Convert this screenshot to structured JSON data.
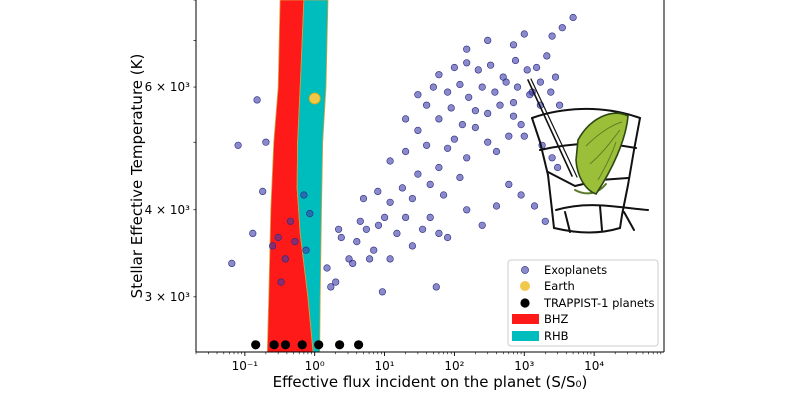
{
  "chart_data": {
    "type": "scatter",
    "xlabel": "Effective flux incident on the planet (S/S₀)",
    "ylabel": "Stellar Effective Temperature (K)",
    "x_scale": "log",
    "y_scale": "log",
    "xlim": [
      0.02,
      100000
    ],
    "ylim": [
      2500,
      8000
    ],
    "x_ticks": [
      {
        "value": 0.1,
        "label": "10⁻¹"
      },
      {
        "value": 1,
        "label": "10⁰"
      },
      {
        "value": 10,
        "label": "10¹"
      },
      {
        "value": 100,
        "label": "10²"
      },
      {
        "value": 1000,
        "label": "10³"
      },
      {
        "value": 10000,
        "label": "10⁴"
      }
    ],
    "y_ticks": [
      {
        "value": 3000,
        "label": "3 × 10³"
      },
      {
        "value": 4000,
        "label": "4 × 10³"
      },
      {
        "value": 6000,
        "label": "6 × 10³"
      }
    ],
    "legend": {
      "position": "lower-right",
      "entries": [
        {
          "label": "Exoplanets",
          "marker": "circle",
          "color": "#3a3aa8"
        },
        {
          "label": "Earth",
          "marker": "circle",
          "color": "#f2c84b"
        },
        {
          "label": "TRAPPIST-1 planets",
          "marker": "circle",
          "color": "#000000"
        },
        {
          "label": "BHZ",
          "marker": "patch",
          "color": "#ff1a1a"
        },
        {
          "label": "RHB",
          "marker": "patch",
          "color": "#00bdbd"
        }
      ]
    },
    "regions": [
      {
        "name": "BHZ",
        "color": "#ff1a1a",
        "inner_edge": [
          [
            0.32,
            8000
          ],
          [
            0.3,
            6000
          ],
          [
            0.26,
            5000
          ],
          [
            0.235,
            4000
          ],
          [
            0.22,
            3000
          ],
          [
            0.21,
            2500
          ]
        ],
        "outer_edge": [
          [
            0.7,
            8000
          ],
          [
            0.62,
            6000
          ],
          [
            0.57,
            5000
          ],
          [
            0.56,
            4300
          ],
          [
            0.62,
            3700
          ],
          [
            0.8,
            3000
          ],
          [
            0.95,
            2500
          ]
        ]
      },
      {
        "name": "RHB",
        "color": "#00bdbd",
        "inner_edge": [
          [
            0.7,
            8000
          ],
          [
            0.62,
            6000
          ],
          [
            0.57,
            5000
          ],
          [
            0.56,
            4300
          ],
          [
            0.62,
            3700
          ],
          [
            0.8,
            3000
          ],
          [
            0.95,
            2500
          ]
        ],
        "outer_edge": [
          [
            1.55,
            8000
          ],
          [
            1.45,
            6000
          ],
          [
            1.3,
            5000
          ],
          [
            1.25,
            4000
          ],
          [
            1.2,
            3000
          ],
          [
            1.18,
            2500
          ]
        ]
      }
    ],
    "series": [
      {
        "name": "Earth",
        "color": "#f2c84b",
        "points": [
          [
            1.0,
            5778
          ]
        ]
      },
      {
        "name": "TRAPPIST-1 planets",
        "color": "#000000",
        "points": [
          [
            0.143,
            2560
          ],
          [
            0.262,
            2560
          ],
          [
            0.382,
            2560
          ],
          [
            0.662,
            2560
          ],
          [
            1.14,
            2560
          ],
          [
            2.27,
            2560
          ],
          [
            4.25,
            2560
          ]
        ]
      },
      {
        "name": "Exoplanets",
        "color": "#3a3aa8",
        "points": [
          [
            0.065,
            3350
          ],
          [
            0.08,
            4950
          ],
          [
            0.13,
            3700
          ],
          [
            0.15,
            5750
          ],
          [
            0.2,
            5000
          ],
          [
            0.18,
            4250
          ],
          [
            0.25,
            3550
          ],
          [
            0.33,
            3150
          ],
          [
            0.3,
            3650
          ],
          [
            0.38,
            3400
          ],
          [
            0.52,
            3600
          ],
          [
            0.45,
            3850
          ],
          [
            0.7,
            4200
          ],
          [
            0.75,
            3500
          ],
          [
            0.85,
            3950
          ],
          [
            1.5,
            3300
          ],
          [
            1.7,
            3100
          ],
          [
            2.0,
            3150
          ],
          [
            2.4,
            3650
          ],
          [
            2.2,
            3750
          ],
          [
            3.1,
            3400
          ],
          [
            3.5,
            3350
          ],
          [
            4.0,
            3600
          ],
          [
            4.5,
            3850
          ],
          [
            5.5,
            3750
          ],
          [
            6.1,
            3400
          ],
          [
            7.0,
            3500
          ],
          [
            8.2,
            3800
          ],
          [
            10,
            3900
          ],
          [
            12,
            3400
          ],
          [
            15,
            3700
          ],
          [
            20,
            3900
          ],
          [
            9.3,
            3050
          ],
          [
            25,
            3550
          ],
          [
            35,
            3750
          ],
          [
            45,
            3900
          ],
          [
            55,
            3100
          ],
          [
            80,
            3650
          ],
          [
            5,
            4150
          ],
          [
            8,
            4250
          ],
          [
            12,
            4100
          ],
          [
            18,
            4300
          ],
          [
            25,
            4150
          ],
          [
            30,
            4500
          ],
          [
            45,
            4350
          ],
          [
            60,
            4600
          ],
          [
            70,
            4200
          ],
          [
            120,
            4450
          ],
          [
            12,
            4700
          ],
          [
            20,
            4850
          ],
          [
            30,
            5200
          ],
          [
            40,
            4950
          ],
          [
            80,
            4900
          ],
          [
            100,
            5050
          ],
          [
            150,
            4750
          ],
          [
            200,
            5250
          ],
          [
            300,
            5000
          ],
          [
            400,
            4850
          ],
          [
            600,
            5100
          ],
          [
            20,
            5400
          ],
          [
            40,
            5650
          ],
          [
            60,
            5400
          ],
          [
            90,
            5600
          ],
          [
            130,
            5300
          ],
          [
            200,
            5550
          ],
          [
            300,
            5500
          ],
          [
            450,
            5650
          ],
          [
            700,
            5450
          ],
          [
            900,
            5300
          ],
          [
            30,
            5850
          ],
          [
            50,
            6000
          ],
          [
            80,
            5900
          ],
          [
            120,
            6050
          ],
          [
            160,
            5800
          ],
          [
            250,
            6000
          ],
          [
            380,
            5900
          ],
          [
            550,
            6100
          ],
          [
            800,
            6000
          ],
          [
            1200,
            5850
          ],
          [
            1700,
            5650
          ],
          [
            60,
            6250
          ],
          [
            100,
            6400
          ],
          [
            150,
            6500
          ],
          [
            220,
            6350
          ],
          [
            330,
            6450
          ],
          [
            500,
            6200
          ],
          [
            750,
            6550
          ],
          [
            1100,
            6350
          ],
          [
            1500,
            6400
          ],
          [
            2100,
            6650
          ],
          [
            2800,
            6200
          ],
          [
            150,
            6800
          ],
          [
            300,
            7000
          ],
          [
            700,
            6900
          ],
          [
            1000,
            7150
          ],
          [
            2500,
            7100
          ],
          [
            3500,
            7300
          ],
          [
            5000,
            7550
          ],
          [
            2200,
            8100
          ],
          [
            700,
            5700
          ],
          [
            1300,
            5900
          ],
          [
            1700,
            6100
          ],
          [
            2400,
            5900
          ],
          [
            3200,
            5650
          ],
          [
            1000,
            5100
          ],
          [
            1800,
            4950
          ],
          [
            2500,
            4750
          ],
          [
            3000,
            4600
          ],
          [
            900,
            4200
          ],
          [
            1400,
            4050
          ],
          [
            2000,
            3850
          ],
          [
            60,
            3700
          ],
          [
            150,
            4000
          ],
          [
            250,
            3800
          ],
          [
            400,
            4050
          ],
          [
            600,
            4350
          ]
        ]
      }
    ]
  }
}
